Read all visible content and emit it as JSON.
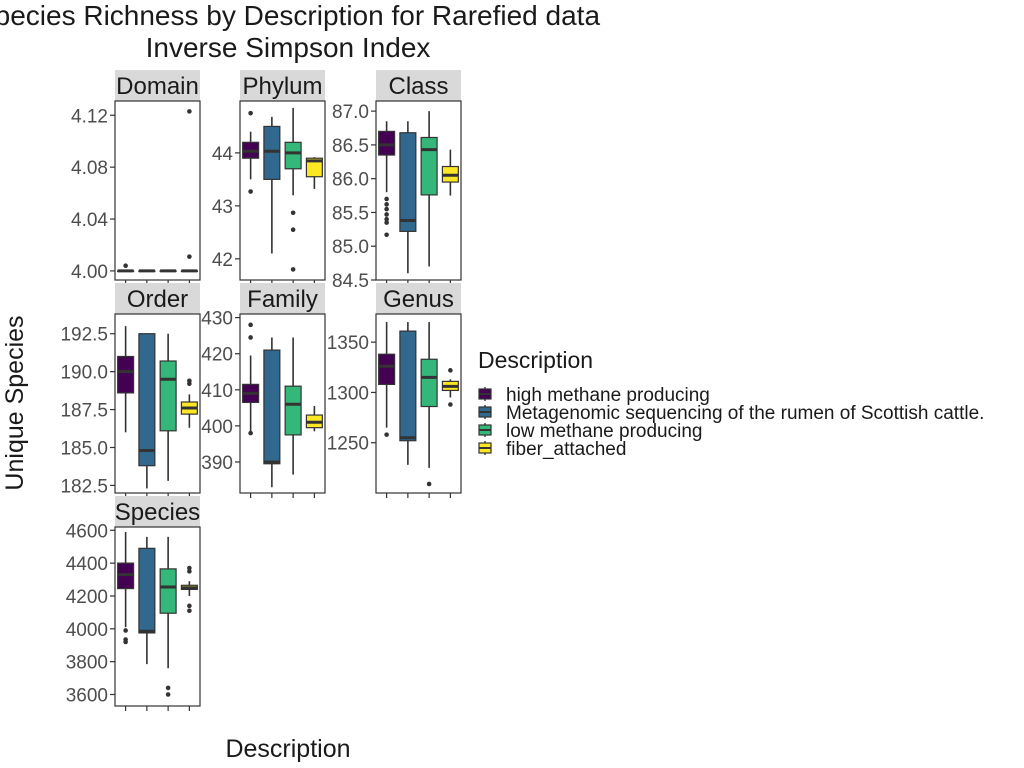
{
  "chart_data": {
    "type": "boxplot",
    "title": "Species Richness by Description for Rarefied data",
    "subtitle": "Inverse Simpson Index",
    "xlabel": "Description",
    "ylabel": "Unique Species",
    "legend": {
      "title": "Description",
      "placement": "right",
      "entries": [
        {
          "label": "high methane producing",
          "color": "#440154"
        },
        {
          "label": "Metagenomic sequencing of the rumen of Scottish cattle.",
          "color": "#31688E"
        },
        {
          "label": "low methane producing",
          "color": "#35B779"
        },
        {
          "label": "fiber_attached",
          "color": "#FDE725"
        }
      ]
    },
    "grid": false,
    "panels": [
      {
        "name": "Domain",
        "ylim": [
          3.993,
          4.131
        ],
        "yticks": [
          "4.00",
          "4.04",
          "4.08",
          "4.12"
        ],
        "boxes": [
          {
            "q1": 4.0,
            "median": 4.0,
            "q3": 4.0,
            "min": 4.0,
            "max": 4.0,
            "outliers": [
              4.004
            ]
          },
          {
            "q1": 4.0,
            "median": 4.0,
            "q3": 4.0,
            "min": 4.0,
            "max": 4.0,
            "outliers": []
          },
          {
            "q1": 4.0,
            "median": 4.0,
            "q3": 4.0,
            "min": 4.0,
            "max": 4.0,
            "outliers": []
          },
          {
            "q1": 4.0,
            "median": 4.0,
            "q3": 4.0,
            "min": 4.0,
            "max": 4.0,
            "outliers": [
              4.123,
              4.011
            ]
          }
        ]
      },
      {
        "name": "Phylum",
        "ylim": [
          41.6,
          44.98
        ],
        "yticks": [
          "42",
          "43",
          "44"
        ],
        "boxes": [
          {
            "q1": 43.9,
            "median": 44.03,
            "q3": 44.2,
            "min": 43.5,
            "max": 44.4,
            "outliers": [
              44.75,
              43.27
            ]
          },
          {
            "q1": 43.5,
            "median": 44.03,
            "q3": 44.5,
            "min": 42.1,
            "max": 44.68,
            "outliers": []
          },
          {
            "q1": 43.7,
            "median": 44.0,
            "q3": 44.2,
            "min": 43.2,
            "max": 44.85,
            "outliers": [
              42.87,
              42.55,
              41.8
            ]
          },
          {
            "q1": 43.55,
            "median": 43.85,
            "q3": 43.9,
            "min": 43.32,
            "max": 43.92,
            "outliers": []
          }
        ]
      },
      {
        "name": "Class",
        "ylim": [
          84.5,
          87.15
        ],
        "yticks": [
          "84.5",
          "85.0",
          "85.5",
          "86.0",
          "86.5",
          "87.0"
        ],
        "boxes": [
          {
            "q1": 86.35,
            "median": 86.5,
            "q3": 86.7,
            "min": 85.8,
            "max": 86.85,
            "outliers": [
              85.7,
              85.62,
              85.55,
              85.47,
              85.4,
              85.35,
              85.17
            ]
          },
          {
            "q1": 85.22,
            "median": 85.38,
            "q3": 86.68,
            "min": 84.6,
            "max": 86.85,
            "outliers": []
          },
          {
            "q1": 85.76,
            "median": 86.43,
            "q3": 86.61,
            "min": 84.7,
            "max": 87.0,
            "outliers": []
          },
          {
            "q1": 85.95,
            "median": 86.05,
            "q3": 86.18,
            "min": 85.75,
            "max": 86.43,
            "outliers": []
          }
        ]
      },
      {
        "name": "Order",
        "ylim": [
          182.0,
          193.8
        ],
        "yticks": [
          "182.5",
          "185.0",
          "187.5",
          "190.0",
          "192.5"
        ],
        "boxes": [
          {
            "q1": 188.6,
            "median": 190.0,
            "q3": 191.0,
            "min": 186.0,
            "max": 193.0,
            "outliers": []
          },
          {
            "q1": 183.8,
            "median": 184.8,
            "q3": 192.5,
            "min": 182.3,
            "max": 192.5,
            "outliers": []
          },
          {
            "q1": 186.1,
            "median": 189.5,
            "q3": 190.7,
            "min": 182.8,
            "max": 192.5,
            "outliers": []
          },
          {
            "q1": 187.2,
            "median": 187.6,
            "q3": 188.0,
            "min": 186.3,
            "max": 188.5,
            "outliers": [
              189.4,
              189.2
            ]
          }
        ]
      },
      {
        "name": "Family",
        "ylim": [
          381.4,
          431.0
        ],
        "yticks": [
          "390",
          "400",
          "410",
          "420",
          "430"
        ],
        "boxes": [
          {
            "q1": 406.5,
            "median": 409.0,
            "q3": 411.5,
            "min": 398.5,
            "max": 419.5,
            "outliers": [
              428.0,
              424.5,
              398.0
            ]
          },
          {
            "q1": 389.5,
            "median": 390.0,
            "q3": 421.0,
            "min": 383.0,
            "max": 424.5,
            "outliers": []
          },
          {
            "q1": 397.5,
            "median": 406.0,
            "q3": 411.0,
            "min": 386.5,
            "max": 424.5,
            "outliers": []
          },
          {
            "q1": 399.5,
            "median": 401.0,
            "q3": 403.0,
            "min": 398.5,
            "max": 405.5,
            "outliers": []
          }
        ]
      },
      {
        "name": "Genus",
        "ylim": [
          1200.0,
          1378.0
        ],
        "yticks": [
          "1250",
          "1300",
          "1350"
        ],
        "boxes": [
          {
            "q1": 1308.0,
            "median": 1326.0,
            "q3": 1338.0,
            "min": 1265.0,
            "max": 1370.0,
            "outliers": [
              1258.0
            ]
          },
          {
            "q1": 1252.0,
            "median": 1255.0,
            "q3": 1361.0,
            "min": 1228.0,
            "max": 1370.0,
            "outliers": []
          },
          {
            "q1": 1286.0,
            "median": 1315.0,
            "q3": 1333.0,
            "min": 1225.0,
            "max": 1370.0,
            "outliers": [
              1209.0
            ]
          },
          {
            "q1": 1302.0,
            "median": 1306.0,
            "q3": 1311.0,
            "min": 1295.0,
            "max": 1313.0,
            "outliers": [
              1322.0,
              1288.0
            ]
          }
        ]
      },
      {
        "name": "Species",
        "ylim": [
          3530.0,
          4620.0
        ],
        "yticks": [
          "3600",
          "3800",
          "4000",
          "4200",
          "4400",
          "4600"
        ],
        "boxes": [
          {
            "q1": 4245.0,
            "median": 4330.0,
            "q3": 4400.0,
            "min": 4010.0,
            "max": 4590.0,
            "outliers": [
              3990.0,
              3935.0,
              3920.0
            ]
          },
          {
            "q1": 3975.0,
            "median": 3985.0,
            "q3": 4490.0,
            "min": 3785.0,
            "max": 4560.0,
            "outliers": []
          },
          {
            "q1": 4095.0,
            "median": 4255.0,
            "q3": 4365.0,
            "min": 3760.0,
            "max": 4560.0,
            "outliers": [
              3640.0,
              3600.0
            ]
          },
          {
            "q1": 4240.0,
            "median": 4250.0,
            "q3": 4265.0,
            "min": 4200.0,
            "max": 4290.0,
            "outliers": [
              4370.0,
              4350.0,
              4140.0,
              4110.0
            ]
          }
        ]
      }
    ]
  }
}
